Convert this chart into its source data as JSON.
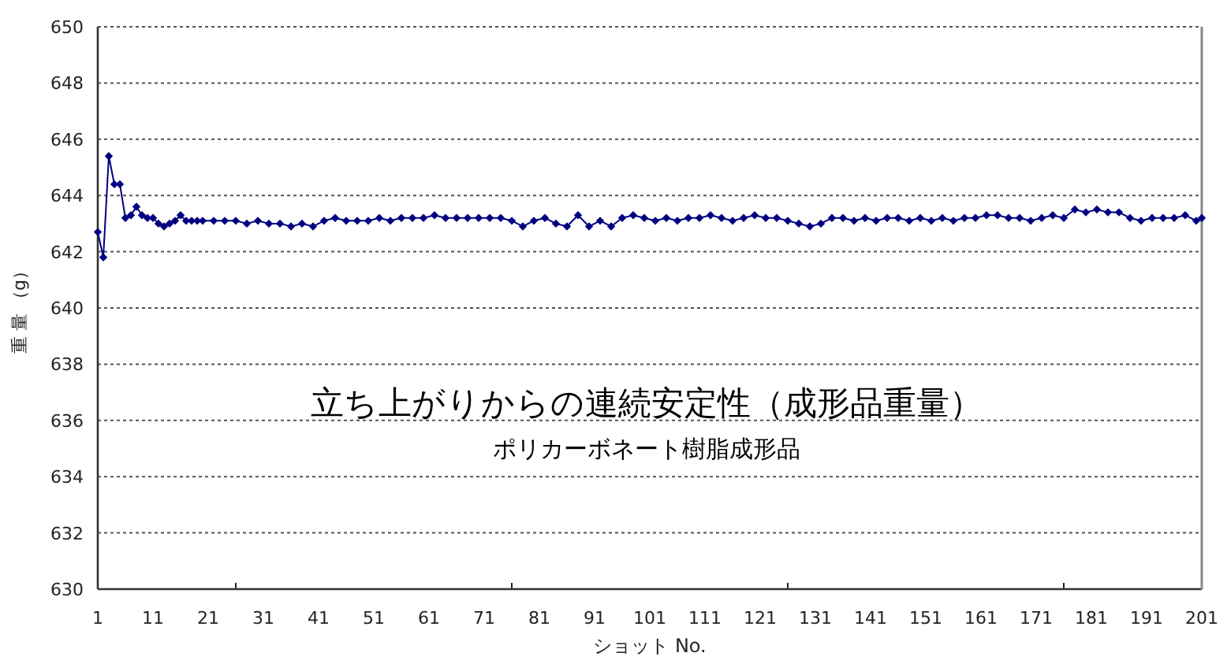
{
  "chart_data": {
    "type": "line",
    "title": "立ち上がりからの連続安定性（成形品重量）",
    "subtitle": "ポリカーボネート樹脂成形品",
    "xlabel": "ショット No.",
    "ylabel": "重 量 （g）",
    "xlim": [
      1,
      201
    ],
    "ylim": [
      630,
      650
    ],
    "xticks": [
      1,
      11,
      21,
      {
        "value": 26,
        "label": null
      },
      31,
      41,
      51,
      61,
      71,
      {
        "value": 76,
        "label": null
      },
      81,
      91,
      101,
      111,
      121,
      {
        "value": 126,
        "label": null
      },
      131,
      141,
      151,
      161,
      171,
      {
        "value": 176,
        "label": null
      },
      181,
      191,
      201
    ],
    "yticks": [
      630,
      632,
      634,
      636,
      638,
      640,
      642,
      644,
      646,
      648,
      650
    ],
    "grid": "y",
    "marker": "diamond",
    "line_style": "solid",
    "series": [
      {
        "color": "#000080",
        "x": [
          1,
          2,
          3,
          4,
          5,
          6,
          7,
          8,
          9,
          10,
          11,
          12,
          13,
          14,
          15,
          16,
          17,
          18,
          19,
          20,
          22,
          24,
          26,
          28,
          30,
          32,
          34,
          36,
          38,
          40,
          42,
          44,
          46,
          48,
          50,
          52,
          54,
          56,
          58,
          60,
          62,
          64,
          66,
          68,
          70,
          72,
          74,
          76,
          78,
          80,
          82,
          84,
          86,
          88,
          90,
          92,
          94,
          96,
          98,
          100,
          102,
          104,
          106,
          108,
          110,
          112,
          114,
          116,
          118,
          120,
          122,
          124,
          126,
          128,
          130,
          132,
          134,
          136,
          138,
          140,
          142,
          144,
          146,
          148,
          150,
          152,
          154,
          156,
          158,
          160,
          162,
          164,
          166,
          168,
          170,
          172,
          174,
          176,
          178,
          180,
          182,
          184,
          186,
          188,
          190,
          192,
          194,
          196,
          198,
          200,
          201
        ],
        "values": [
          642.7,
          641.8,
          645.4,
          644.4,
          644.4,
          643.2,
          643.3,
          643.6,
          643.3,
          643.2,
          643.2,
          643.0,
          642.9,
          643.0,
          643.1,
          643.3,
          643.1,
          643.1,
          643.1,
          643.1,
          643.1,
          643.1,
          643.1,
          643.0,
          643.1,
          643.0,
          643.0,
          642.9,
          643.0,
          642.9,
          643.1,
          643.2,
          643.1,
          643.1,
          643.1,
          643.2,
          643.1,
          643.2,
          643.2,
          643.2,
          643.3,
          643.2,
          643.2,
          643.2,
          643.2,
          643.2,
          643.2,
          643.1,
          642.9,
          643.1,
          643.2,
          643.0,
          642.9,
          643.3,
          642.9,
          643.1,
          642.9,
          643.2,
          643.3,
          643.2,
          643.1,
          643.2,
          643.1,
          643.2,
          643.2,
          643.3,
          643.2,
          643.1,
          643.2,
          643.3,
          643.2,
          643.2,
          643.1,
          643.0,
          642.9,
          643.0,
          643.2,
          643.2,
          643.1,
          643.2,
          643.1,
          643.2,
          643.2,
          643.1,
          643.2,
          643.1,
          643.2,
          643.1,
          643.2,
          643.2,
          643.3,
          643.3,
          643.2,
          643.2,
          643.1,
          643.2,
          643.3,
          643.2,
          643.5,
          643.4,
          643.5,
          643.4,
          643.4,
          643.2,
          643.1,
          643.2,
          643.2,
          643.2,
          643.3,
          643.1,
          643.2
        ]
      }
    ]
  }
}
